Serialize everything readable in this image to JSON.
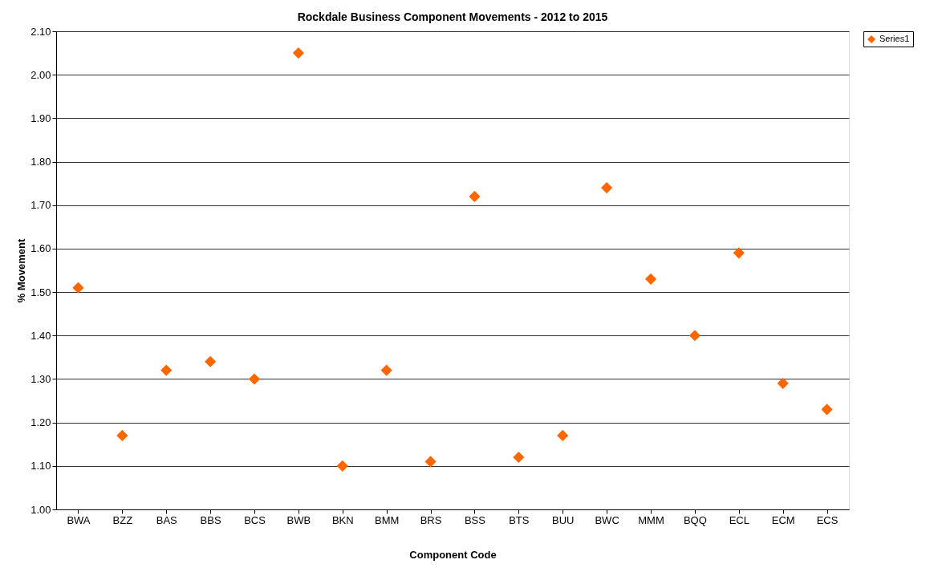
{
  "chart_data": {
    "type": "scatter",
    "title": "Rockdale Business Component Movements - 2012 to 2015",
    "xlabel": "Component Code",
    "ylabel": "% Movement",
    "categories": [
      "BWA",
      "BZZ",
      "BAS",
      "BBS",
      "BCS",
      "BWB",
      "BKN",
      "BMM",
      "BRS",
      "BSS",
      "BTS",
      "BUU",
      "BWC",
      "MMM",
      "BQQ",
      "ECL",
      "ECM",
      "ECS"
    ],
    "series": [
      {
        "name": "Series1",
        "color": "#ff6600",
        "values": [
          1.51,
          1.17,
          1.32,
          1.34,
          1.3,
          2.05,
          1.1,
          1.32,
          1.11,
          1.72,
          1.12,
          1.17,
          1.74,
          1.53,
          1.4,
          1.59,
          1.29,
          1.23
        ]
      }
    ],
    "ylim": [
      1.0,
      2.1
    ],
    "yticks": [
      {
        "value": 1.0,
        "label": "1.00"
      },
      {
        "value": 1.1,
        "label": "1.10"
      },
      {
        "value": 1.2,
        "label": "1.20"
      },
      {
        "value": 1.3,
        "label": "1.30"
      },
      {
        "value": 1.4,
        "label": "1.40"
      },
      {
        "value": 1.5,
        "label": "1.50"
      },
      {
        "value": 1.6,
        "label": "1.60"
      },
      {
        "value": 1.7,
        "label": "1.70"
      },
      {
        "value": 1.8,
        "label": "1.80"
      },
      {
        "value": 1.9,
        "label": "1.90"
      },
      {
        "value": 2.0,
        "label": "2.00"
      },
      {
        "value": 2.1,
        "label": "2.10"
      }
    ],
    "grid": "y",
    "legend": "right",
    "marker": "diamond"
  }
}
